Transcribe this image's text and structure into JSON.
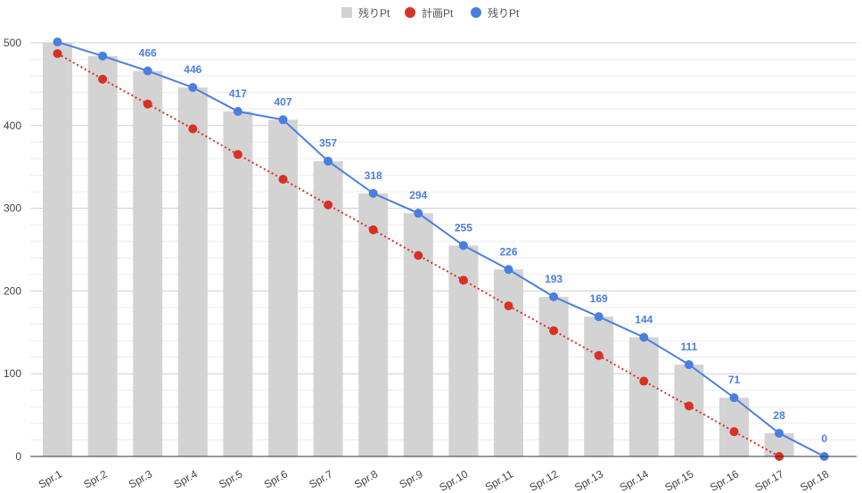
{
  "chart_data": {
    "type": "bar",
    "title": "",
    "xlabel": "",
    "ylabel": "",
    "ylim": [
      0,
      500
    ],
    "yticks": [
      0,
      100,
      200,
      300,
      400,
      500
    ],
    "grid": true,
    "legend_position": "top",
    "categories": [
      "Spr.1",
      "Spr.2",
      "Spr.3",
      "Spr.4",
      "Spr.5",
      "Spr.6",
      "Spr.7",
      "Spr.8",
      "Spr.9",
      "Spr.10",
      "Spr.11",
      "Spr.12",
      "Spr.13",
      "Spr.14",
      "Spr.15",
      "Spr.16",
      "Spr.17",
      "Spr.18"
    ],
    "series": [
      {
        "name": "残りPt",
        "kind": "bar",
        "color": "#d3d3d3",
        "values": [
          501,
          484,
          466,
          446,
          417,
          407,
          357,
          318,
          294,
          255,
          226,
          193,
          169,
          144,
          111,
          71,
          28,
          0
        ]
      },
      {
        "name": "計画Pt",
        "kind": "line-dotted",
        "color": "#d93025",
        "values": [
          487,
          456,
          426,
          396,
          365,
          335,
          304,
          274,
          243,
          213,
          182,
          152,
          122,
          91,
          61,
          30,
          0,
          null
        ]
      },
      {
        "name": "残りPt",
        "kind": "line",
        "color": "#4a7fe0",
        "values": [
          501,
          484,
          466,
          446,
          417,
          407,
          357,
          318,
          294,
          255,
          226,
          193,
          169,
          144,
          111,
          71,
          28,
          0
        ],
        "data_labels": [
          null,
          null,
          "466",
          "446",
          "417",
          "407",
          "357",
          "318",
          "294",
          "255",
          "226",
          "193",
          "169",
          "144",
          "111",
          "71",
          "28",
          "0"
        ]
      }
    ]
  }
}
